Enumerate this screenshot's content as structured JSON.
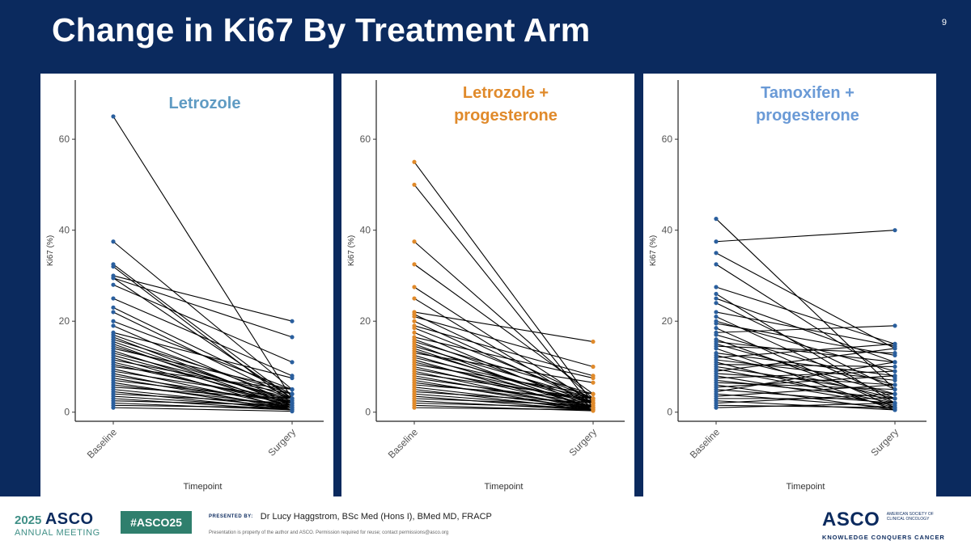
{
  "slide": {
    "title": "Change in Ki67 By Treatment Arm",
    "page_number": "9"
  },
  "footer": {
    "asco_year": "2025",
    "asco_name": "ASCO",
    "asco_meeting": "ANNUAL MEETING",
    "hashtag": "#ASCO25",
    "presented_by_label": "PRESENTED BY:",
    "presenter": "Dr Lucy Haggstrom, BSc Med (Hons I), BMed MD, FRACP",
    "disclaimer": "Presentation is property of the author and ASCO. Permission required for reuse; contact permissions@asco.org",
    "logo_name": "ASCO",
    "logo_society": "AMERICAN SOCIETY OF CLINICAL ONCOLOGY",
    "logo_tagline": "KNOWLEDGE CONQUERS CANCER"
  },
  "colors": {
    "background": "#0b2a5e",
    "letrozole": "#5f9bc3",
    "letrozole_progesterone": "#e08a2b",
    "tamoxifen_progesterone": "#6a9ad6",
    "point_blue": "#2a5f9e",
    "point_orange": "#e08a2b",
    "line": "#000000"
  },
  "chart_data": [
    {
      "type": "line",
      "title_lines": [
        "Letrozole"
      ],
      "title_color": "#5f9bc3",
      "point_color": "#2a5f9e",
      "xlabel": "Timepoint",
      "ylabel": "Ki67 (%)",
      "categories": [
        "Baseline",
        "Surgery"
      ],
      "yticks": [
        0,
        20,
        40,
        60
      ],
      "ylim": [
        -2,
        73
      ],
      "pairs": [
        [
          65,
          3
        ],
        [
          37.5,
          5
        ],
        [
          32.5,
          3
        ],
        [
          32,
          2
        ],
        [
          30,
          20
        ],
        [
          29.5,
          16.5
        ],
        [
          29.5,
          3
        ],
        [
          28,
          11
        ],
        [
          25,
          8
        ],
        [
          23,
          4
        ],
        [
          22,
          3
        ],
        [
          20,
          5
        ],
        [
          19,
          2
        ],
        [
          17.5,
          7.5
        ],
        [
          17,
          3
        ],
        [
          16.5,
          1.5
        ],
        [
          16,
          4
        ],
        [
          15.5,
          2
        ],
        [
          15,
          1
        ],
        [
          14.5,
          2.5
        ],
        [
          14,
          5
        ],
        [
          13.5,
          1
        ],
        [
          13,
          3
        ],
        [
          12.5,
          2
        ],
        [
          12,
          0.5
        ],
        [
          11.5,
          4
        ],
        [
          11,
          1.5
        ],
        [
          10.5,
          2
        ],
        [
          10,
          5
        ],
        [
          9.5,
          1
        ],
        [
          9,
          3
        ],
        [
          8.5,
          0.5
        ],
        [
          8,
          2
        ],
        [
          7.5,
          1
        ],
        [
          7,
          2.5
        ],
        [
          6.5,
          0.5
        ],
        [
          6,
          1.5
        ],
        [
          5.5,
          3
        ],
        [
          5,
          1
        ],
        [
          4.5,
          0.5
        ],
        [
          4,
          2
        ],
        [
          3.5,
          1
        ],
        [
          3,
          0.5
        ],
        [
          2.5,
          1.5
        ],
        [
          2,
          0.5
        ],
        [
          1.5,
          1
        ],
        [
          1,
          0.2
        ]
      ]
    },
    {
      "type": "line",
      "title_lines": [
        "Letrozole +",
        "progesterone"
      ],
      "title_color": "#e08a2b",
      "point_color": "#e08a2b",
      "xlabel": "Timepoint",
      "ylabel": "Ki67 (%)",
      "categories": [
        "Baseline",
        "Surgery"
      ],
      "yticks": [
        0,
        20,
        40,
        60
      ],
      "ylim": [
        -2,
        73
      ],
      "pairs": [
        [
          55,
          2
        ],
        [
          50,
          1
        ],
        [
          37.5,
          3
        ],
        [
          32.5,
          4
        ],
        [
          27.5,
          2
        ],
        [
          25,
          1
        ],
        [
          22,
          15.5
        ],
        [
          21.5,
          3
        ],
        [
          21,
          10
        ],
        [
          20,
          2
        ],
        [
          19,
          8
        ],
        [
          18.5,
          3
        ],
        [
          17.5,
          1
        ],
        [
          16.5,
          7.5
        ],
        [
          16,
          2
        ],
        [
          15.5,
          4
        ],
        [
          15,
          0.5
        ],
        [
          14.5,
          3
        ],
        [
          14,
          1
        ],
        [
          13.5,
          2
        ],
        [
          13,
          6.5
        ],
        [
          12.5,
          1
        ],
        [
          12,
          3
        ],
        [
          11.5,
          0.5
        ],
        [
          11,
          2
        ],
        [
          10.5,
          4
        ],
        [
          10,
          1
        ],
        [
          9.5,
          2.5
        ],
        [
          9,
          0.5
        ],
        [
          8.5,
          3
        ],
        [
          8,
          1
        ],
        [
          7.5,
          2
        ],
        [
          7,
          0.5
        ],
        [
          6.5,
          1.5
        ],
        [
          6,
          3
        ],
        [
          5.5,
          1
        ],
        [
          5,
          0.5
        ],
        [
          4.5,
          2
        ],
        [
          4,
          1
        ],
        [
          3.5,
          0.5
        ],
        [
          3,
          1.5
        ],
        [
          2.5,
          0.5
        ],
        [
          2,
          1
        ],
        [
          1.5,
          0.3
        ],
        [
          1,
          0.5
        ]
      ]
    },
    {
      "type": "line",
      "title_lines": [
        "Tamoxifen +",
        "progesterone"
      ],
      "title_color": "#6a9ad6",
      "point_color": "#2a5f9e",
      "xlabel": "Timepoint",
      "ylabel": "Ki67 (%)",
      "categories": [
        "Baseline",
        "Surgery"
      ],
      "yticks": [
        0,
        20,
        40,
        60
      ],
      "ylim": [
        -2,
        73
      ],
      "pairs": [
        [
          42.5,
          5
        ],
        [
          37.5,
          40
        ],
        [
          35,
          14
        ],
        [
          32.5,
          7.5
        ],
        [
          27.5,
          15
        ],
        [
          26,
          2
        ],
        [
          25,
          11
        ],
        [
          24,
          5
        ],
        [
          22,
          14.5
        ],
        [
          21,
          3
        ],
        [
          20,
          9
        ],
        [
          19.5,
          12.5
        ],
        [
          18.5,
          1
        ],
        [
          17.5,
          19
        ],
        [
          17,
          6
        ],
        [
          16,
          2
        ],
        [
          15.5,
          11
        ],
        [
          15,
          4
        ],
        [
          14.5,
          13
        ],
        [
          14,
          0.5
        ],
        [
          13,
          8
        ],
        [
          12.5,
          3
        ],
        [
          12,
          15
        ],
        [
          11.5,
          7
        ],
        [
          11,
          1
        ],
        [
          10.5,
          10
        ],
        [
          10,
          4
        ],
        [
          9.5,
          2
        ],
        [
          9,
          14
        ],
        [
          8.5,
          6
        ],
        [
          8,
          1.5
        ],
        [
          7.5,
          9
        ],
        [
          7,
          3
        ],
        [
          6.5,
          5
        ],
        [
          6,
          0.5
        ],
        [
          5.5,
          8
        ],
        [
          5,
          2
        ],
        [
          4.5,
          11
        ],
        [
          4,
          1
        ],
        [
          3.5,
          6
        ],
        [
          3,
          3
        ],
        [
          2.5,
          0.5
        ],
        [
          2,
          4
        ],
        [
          1.5,
          1
        ],
        [
          1,
          2
        ]
      ]
    }
  ]
}
